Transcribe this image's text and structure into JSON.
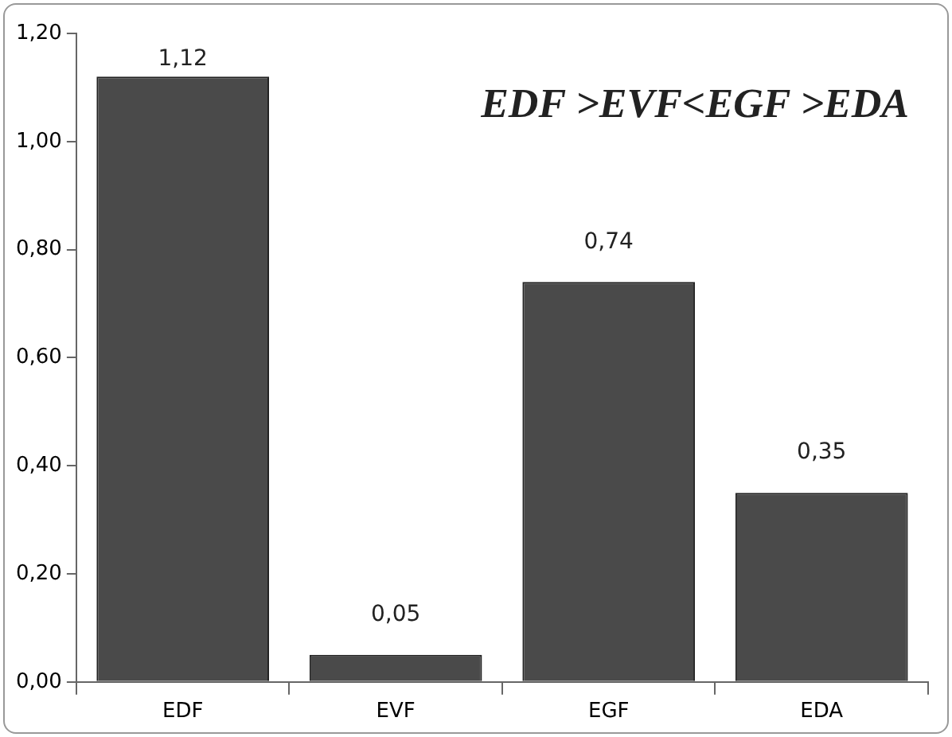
{
  "chart_data": {
    "type": "bar",
    "categories": [
      "EDF",
      "EVF",
      "EGF",
      "EDA"
    ],
    "values": [
      1.12,
      0.05,
      0.74,
      0.35
    ],
    "value_labels": [
      "1,12",
      "0,05",
      "0,74",
      "0,35"
    ],
    "color": "#4a4a4a",
    "ylim": [
      0,
      1.2
    ],
    "yticks": [
      {
        "value": 0,
        "label": "0,00"
      },
      {
        "value": 0.2,
        "label": "0,20"
      },
      {
        "value": 0.4,
        "label": "0,40"
      },
      {
        "value": 0.6,
        "label": "0,60"
      },
      {
        "value": 0.8,
        "label": "0,80"
      },
      {
        "value": 1,
        "label": "1,00"
      },
      {
        "value": 1.2,
        "label": "1,20"
      }
    ],
    "annotations": [
      "EDF >EVF<EGF >EDA"
    ],
    "grid": false,
    "legend": false
  }
}
